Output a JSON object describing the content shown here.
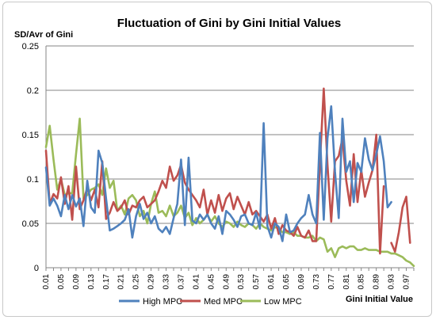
{
  "chart_data": {
    "type": "line",
    "title": "Fluctuation of Gini by Gini Initial Values",
    "ylabel": "SD/Avr of Gini",
    "xlabel": "Gini Initial Value",
    "ylim": [
      0,
      0.25
    ],
    "yticks": [
      "0",
      "0.05",
      "0.1",
      "0.15",
      "0.2",
      "0.25"
    ],
    "xlim": [
      0.01,
      0.99
    ],
    "xticks": [
      "0.01",
      "0.05",
      "0.09",
      "0.13",
      "0.17",
      "0.21",
      "0.25",
      "0.29",
      "0.33",
      "0.37",
      "0.41",
      "0.45",
      "0.49",
      "0.53",
      "0.57",
      "0.61",
      "0.65",
      "0.69",
      "0.73",
      "0.77",
      "0.81",
      "0.85",
      "0.89",
      "0.93",
      "0.97"
    ],
    "grid": "horizontal",
    "legend": "bottom",
    "series": [
      {
        "name": "High MPC",
        "color": "#4f81bd",
        "points": [
          [
            0.01,
            0.113
          ],
          [
            0.02,
            0.07
          ],
          [
            0.03,
            0.078
          ],
          [
            0.04,
            0.07
          ],
          [
            0.05,
            0.058
          ],
          [
            0.06,
            0.082
          ],
          [
            0.07,
            0.066
          ],
          [
            0.08,
            0.082
          ],
          [
            0.09,
            0.069
          ],
          [
            0.1,
            0.078
          ],
          [
            0.11,
            0.047
          ],
          [
            0.12,
            0.098
          ],
          [
            0.13,
            0.068
          ],
          [
            0.14,
            0.062
          ],
          [
            0.15,
            0.132
          ],
          [
            0.16,
            0.118
          ],
          [
            0.17,
            0.078
          ],
          [
            0.18,
            0.042
          ],
          [
            0.19,
            0.044
          ],
          [
            0.2,
            0.047
          ],
          [
            0.21,
            0.05
          ],
          [
            0.22,
            0.054
          ],
          [
            0.23,
            0.066
          ],
          [
            0.24,
            0.034
          ],
          [
            0.25,
            0.058
          ],
          [
            0.26,
            0.072
          ],
          [
            0.27,
            0.055
          ],
          [
            0.28,
            0.062
          ],
          [
            0.29,
            0.05
          ],
          [
            0.3,
            0.058
          ],
          [
            0.31,
            0.044
          ],
          [
            0.32,
            0.04
          ],
          [
            0.33,
            0.046
          ],
          [
            0.34,
            0.038
          ],
          [
            0.35,
            0.056
          ],
          [
            0.36,
            0.072
          ],
          [
            0.37,
            0.122
          ],
          [
            0.38,
            0.048
          ],
          [
            0.39,
            0.124
          ],
          [
            0.4,
            0.053
          ],
          [
            0.41,
            0.05
          ],
          [
            0.42,
            0.06
          ],
          [
            0.43,
            0.054
          ],
          [
            0.44,
            0.06
          ],
          [
            0.45,
            0.05
          ],
          [
            0.46,
            0.044
          ],
          [
            0.47,
            0.058
          ],
          [
            0.48,
            0.038
          ],
          [
            0.49,
            0.064
          ],
          [
            0.5,
            0.06
          ],
          [
            0.51,
            0.054
          ],
          [
            0.52,
            0.046
          ],
          [
            0.53,
            0.058
          ],
          [
            0.54,
            0.06
          ],
          [
            0.55,
            0.05
          ],
          [
            0.56,
            0.048
          ],
          [
            0.57,
            0.062
          ],
          [
            0.58,
            0.044
          ],
          [
            0.59,
            0.163
          ],
          [
            0.6,
            0.047
          ],
          [
            0.61,
            0.034
          ],
          [
            0.62,
            0.05
          ],
          [
            0.63,
            0.046
          ],
          [
            0.64,
            0.03
          ],
          [
            0.65,
            0.06
          ],
          [
            0.66,
            0.04
          ],
          [
            0.67,
            0.042
          ],
          [
            0.68,
            0.05
          ],
          [
            0.69,
            0.056
          ],
          [
            0.7,
            0.06
          ],
          [
            0.71,
            0.082
          ],
          [
            0.72,
            0.06
          ],
          [
            0.73,
            0.05
          ],
          [
            0.74,
            0.152
          ],
          [
            0.75,
            0.054
          ],
          [
            0.76,
            0.146
          ],
          [
            0.77,
            0.182
          ],
          [
            0.78,
            0.108
          ],
          [
            0.79,
            0.056
          ],
          [
            0.8,
            0.168
          ],
          [
            0.81,
            0.108
          ],
          [
            0.82,
            0.12
          ],
          [
            0.83,
            0.074
          ],
          [
            0.84,
            0.118
          ],
          [
            0.85,
            0.108
          ],
          [
            0.86,
            0.146
          ],
          [
            0.87,
            0.122
          ],
          [
            0.88,
            0.11
          ],
          [
            0.89,
            0.128
          ],
          [
            0.9,
            0.148
          ],
          [
            0.91,
            0.12
          ],
          [
            0.92,
            0.068
          ],
          [
            0.93,
            0.074
          ]
        ]
      },
      {
        "name": "Med MPC",
        "color": "#c0504d",
        "points": [
          [
            0.01,
            0.132
          ],
          [
            0.02,
            0.072
          ],
          [
            0.03,
            0.083
          ],
          [
            0.04,
            0.078
          ],
          [
            0.05,
            0.102
          ],
          [
            0.06,
            0.072
          ],
          [
            0.07,
            0.092
          ],
          [
            0.08,
            0.054
          ],
          [
            0.09,
            0.114
          ],
          [
            0.1,
            0.066
          ],
          [
            0.11,
            0.076
          ],
          [
            0.12,
            0.09
          ],
          [
            0.13,
            0.076
          ],
          [
            0.14,
            0.088
          ],
          [
            0.15,
            0.068
          ],
          [
            0.16,
            0.12
          ],
          [
            0.17,
            0.055
          ],
          [
            0.18,
            0.062
          ],
          [
            0.19,
            0.074
          ],
          [
            0.2,
            0.064
          ],
          [
            0.21,
            0.068
          ],
          [
            0.22,
            0.076
          ],
          [
            0.23,
            0.06
          ],
          [
            0.24,
            0.07
          ],
          [
            0.25,
            0.068
          ],
          [
            0.26,
            0.076
          ],
          [
            0.27,
            0.08
          ],
          [
            0.28,
            0.068
          ],
          [
            0.29,
            0.072
          ],
          [
            0.3,
            0.076
          ],
          [
            0.31,
            0.086
          ],
          [
            0.32,
            0.098
          ],
          [
            0.33,
            0.09
          ],
          [
            0.34,
            0.114
          ],
          [
            0.35,
            0.098
          ],
          [
            0.36,
            0.104
          ],
          [
            0.37,
            0.116
          ],
          [
            0.38,
            0.096
          ],
          [
            0.39,
            0.088
          ],
          [
            0.4,
            0.082
          ],
          [
            0.41,
            0.076
          ],
          [
            0.42,
            0.068
          ],
          [
            0.43,
            0.088
          ],
          [
            0.44,
            0.06
          ],
          [
            0.45,
            0.076
          ],
          [
            0.46,
            0.062
          ],
          [
            0.47,
            0.082
          ],
          [
            0.48,
            0.064
          ],
          [
            0.49,
            0.078
          ],
          [
            0.5,
            0.084
          ],
          [
            0.51,
            0.066
          ],
          [
            0.52,
            0.08
          ],
          [
            0.53,
            0.07
          ],
          [
            0.54,
            0.06
          ],
          [
            0.55,
            0.074
          ],
          [
            0.56,
            0.06
          ],
          [
            0.57,
            0.064
          ],
          [
            0.58,
            0.058
          ],
          [
            0.59,
            0.052
          ],
          [
            0.6,
            0.06
          ],
          [
            0.61,
            0.044
          ],
          [
            0.62,
            0.056
          ],
          [
            0.63,
            0.038
          ],
          [
            0.64,
            0.048
          ],
          [
            0.65,
            0.042
          ],
          [
            0.66,
            0.04
          ],
          [
            0.67,
            0.036
          ],
          [
            0.68,
            0.046
          ],
          [
            0.69,
            0.036
          ],
          [
            0.7,
            0.034
          ],
          [
            0.71,
            0.042
          ],
          [
            0.72,
            0.03
          ],
          [
            0.73,
            0.03
          ],
          [
            0.74,
            0.118
          ],
          [
            0.75,
            0.202
          ],
          [
            0.76,
            0.116
          ],
          [
            0.77,
            0.052
          ],
          [
            0.78,
            0.12
          ],
          [
            0.79,
            0.126
          ],
          [
            0.8,
            0.146
          ],
          [
            0.81,
            0.098
          ],
          [
            0.82,
            0.07
          ],
          [
            0.83,
            0.128
          ],
          [
            0.84,
            0.074
          ],
          [
            0.85,
            0.11
          ],
          [
            0.86,
            0.08
          ],
          [
            0.87,
            0.096
          ],
          [
            0.88,
            0.11
          ],
          [
            0.89,
            0.15
          ],
          [
            0.9,
            0.016
          ],
          [
            0.91,
            0.092
          ],
          [
            0.92,
            null
          ],
          [
            0.93,
            0.028
          ],
          [
            0.94,
            0.018
          ],
          [
            0.95,
            0.04
          ],
          [
            0.96,
            0.068
          ],
          [
            0.97,
            0.08
          ],
          [
            0.98,
            0.028
          ]
        ]
      },
      {
        "name": "Low MPC",
        "color": "#9bbb59",
        "points": [
          [
            0.01,
            0.136
          ],
          [
            0.02,
            0.16
          ],
          [
            0.03,
            0.122
          ],
          [
            0.04,
            0.088
          ],
          [
            0.05,
            0.1
          ],
          [
            0.06,
            0.082
          ],
          [
            0.07,
            0.084
          ],
          [
            0.08,
            0.084
          ],
          [
            0.09,
            0.128
          ],
          [
            0.1,
            0.168
          ],
          [
            0.11,
            0.078
          ],
          [
            0.12,
            0.082
          ],
          [
            0.13,
            0.088
          ],
          [
            0.14,
            0.09
          ],
          [
            0.15,
            0.094
          ],
          [
            0.16,
            0.082
          ],
          [
            0.17,
            0.112
          ],
          [
            0.18,
            0.09
          ],
          [
            0.19,
            0.098
          ],
          [
            0.2,
            0.064
          ],
          [
            0.21,
            0.07
          ],
          [
            0.22,
            0.06
          ],
          [
            0.23,
            0.078
          ],
          [
            0.24,
            0.082
          ],
          [
            0.25,
            0.076
          ],
          [
            0.26,
            0.058
          ],
          [
            0.27,
            0.064
          ],
          [
            0.28,
            0.05
          ],
          [
            0.29,
            0.072
          ],
          [
            0.3,
            0.086
          ],
          [
            0.31,
            0.062
          ],
          [
            0.32,
            0.064
          ],
          [
            0.33,
            0.058
          ],
          [
            0.34,
            0.07
          ],
          [
            0.35,
            0.058
          ],
          [
            0.36,
            0.062
          ],
          [
            0.37,
            0.07
          ],
          [
            0.38,
            0.056
          ],
          [
            0.39,
            0.062
          ],
          [
            0.4,
            0.048
          ],
          [
            0.41,
            0.056
          ],
          [
            0.42,
            0.05
          ],
          [
            0.43,
            0.054
          ],
          [
            0.44,
            0.06
          ],
          [
            0.45,
            0.052
          ],
          [
            0.46,
            0.058
          ],
          [
            0.47,
            0.05
          ],
          [
            0.48,
            0.046
          ],
          [
            0.49,
            0.052
          ],
          [
            0.5,
            0.05
          ],
          [
            0.51,
            0.046
          ],
          [
            0.52,
            0.052
          ],
          [
            0.53,
            0.048
          ],
          [
            0.54,
            0.046
          ],
          [
            0.55,
            0.05
          ],
          [
            0.56,
            0.048
          ],
          [
            0.57,
            0.044
          ],
          [
            0.58,
            0.05
          ],
          [
            0.59,
            0.046
          ],
          [
            0.6,
            0.044
          ],
          [
            0.61,
            0.042
          ],
          [
            0.62,
            0.046
          ],
          [
            0.63,
            0.044
          ],
          [
            0.64,
            0.04
          ],
          [
            0.65,
            0.04
          ],
          [
            0.66,
            0.038
          ],
          [
            0.67,
            0.04
          ],
          [
            0.68,
            0.036
          ],
          [
            0.69,
            0.036
          ],
          [
            0.7,
            0.034
          ],
          [
            0.71,
            0.034
          ],
          [
            0.72,
            0.036
          ],
          [
            0.73,
            0.03
          ],
          [
            0.74,
            0.034
          ],
          [
            0.75,
            0.032
          ],
          [
            0.76,
            0.018
          ],
          [
            0.77,
            0.022
          ],
          [
            0.78,
            0.012
          ],
          [
            0.79,
            0.022
          ],
          [
            0.8,
            0.024
          ],
          [
            0.81,
            0.022
          ],
          [
            0.82,
            0.024
          ],
          [
            0.83,
            0.024
          ],
          [
            0.84,
            0.02
          ],
          [
            0.85,
            0.02
          ],
          [
            0.86,
            0.022
          ],
          [
            0.87,
            0.02
          ],
          [
            0.88,
            0.02
          ],
          [
            0.89,
            0.02
          ],
          [
            0.9,
            0.018
          ],
          [
            0.91,
            0.018
          ],
          [
            0.92,
            0.018
          ],
          [
            0.93,
            0.016
          ],
          [
            0.94,
            0.016
          ],
          [
            0.95,
            0.014
          ],
          [
            0.96,
            0.012
          ],
          [
            0.97,
            0.008
          ],
          [
            0.98,
            0.006
          ],
          [
            0.99,
            0.002
          ]
        ]
      }
    ]
  }
}
